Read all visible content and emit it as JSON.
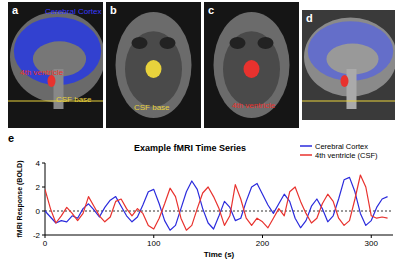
{
  "panels": [
    {
      "letter": "a",
      "labels": [
        "Cerebral Cortex",
        "4th ventricle",
        "CSF base"
      ]
    },
    {
      "letter": "b",
      "labels": [
        "CSF base"
      ]
    },
    {
      "letter": "c",
      "labels": [
        "4th ventricle"
      ]
    },
    {
      "letter": "d",
      "labels": []
    }
  ],
  "chart_data": {
    "type": "line",
    "letter": "e",
    "title": "Example fMRI Time Series",
    "x_label": "Time (s)",
    "y_label": "fMRI Response (BOLD)",
    "x": [
      0,
      5,
      10,
      15,
      20,
      25,
      30,
      35,
      40,
      45,
      50,
      55,
      60,
      65,
      70,
      75,
      80,
      85,
      90,
      95,
      100,
      105,
      110,
      115,
      120,
      125,
      130,
      135,
      140,
      145,
      150,
      155,
      160,
      165,
      170,
      175,
      180,
      185,
      190,
      195,
      200,
      205,
      210,
      215,
      220,
      225,
      230,
      235,
      240,
      245,
      250,
      255,
      260,
      265,
      270,
      275,
      280,
      285,
      290,
      295,
      300,
      305,
      310,
      315
    ],
    "series": [
      {
        "name": "Cerebral Cortex",
        "color": "#2b2bdc",
        "values": [
          0,
          -0.5,
          -1.0,
          -0.8,
          -0.9,
          -0.4,
          -0.6,
          0.2,
          0.6,
          0.1,
          -0.5,
          0.3,
          0.9,
          1.2,
          0.4,
          -0.4,
          -0.9,
          -0.5,
          0.5,
          1.6,
          1.8,
          0.6,
          -0.8,
          -1.6,
          -1.2,
          0.2,
          1.6,
          2.5,
          1.8,
          0.2,
          -1.0,
          -1.5,
          -0.4,
          0.8,
          0.3,
          -0.8,
          -0.6,
          0.8,
          2.0,
          2.3,
          1.4,
          0.5,
          -0.2,
          0.6,
          1.4,
          0.8,
          -0.6,
          -1.4,
          -0.8,
          0.4,
          1.0,
          0.2,
          -0.9,
          -0.4,
          1.0,
          2.6,
          2.8,
          1.6,
          -0.2,
          -1.2,
          -0.8,
          0.3,
          1.0,
          1.2
        ]
      },
      {
        "name": "4th ventricle (CSF)",
        "color": "#e8322e",
        "values": [
          1.8,
          0.2,
          -1.0,
          -0.4,
          0.3,
          -0.2,
          -0.8,
          -0.2,
          1.2,
          0.4,
          -0.4,
          -0.9,
          -0.5,
          0.8,
          1.0,
          0.2,
          -0.4,
          0.2,
          -0.2,
          -1.2,
          -1.5,
          -0.6,
          0.6,
          1.9,
          1.2,
          -0.6,
          -1.6,
          -1.2,
          0.2,
          1.5,
          2.0,
          1.2,
          0.2,
          -1.2,
          -0.4,
          2.2,
          1.0,
          -0.6,
          -1.2,
          -0.6,
          -0.9,
          -1.4,
          -0.6,
          0.2,
          -0.4,
          1.6,
          2.0,
          0.8,
          -0.2,
          -1.0,
          -0.6,
          0.6,
          1.4,
          0.8,
          -0.6,
          -1.2,
          -0.8,
          1.0,
          3.0,
          2.0,
          -0.4,
          -0.6,
          -0.5,
          -0.6
        ]
      }
    ],
    "xlim": [
      0,
      320
    ],
    "xticks": [
      0,
      100,
      200,
      300
    ],
    "ylim": [
      -2,
      4
    ],
    "yticks": [
      -2,
      0,
      2,
      4
    ],
    "legend": "top-right"
  }
}
